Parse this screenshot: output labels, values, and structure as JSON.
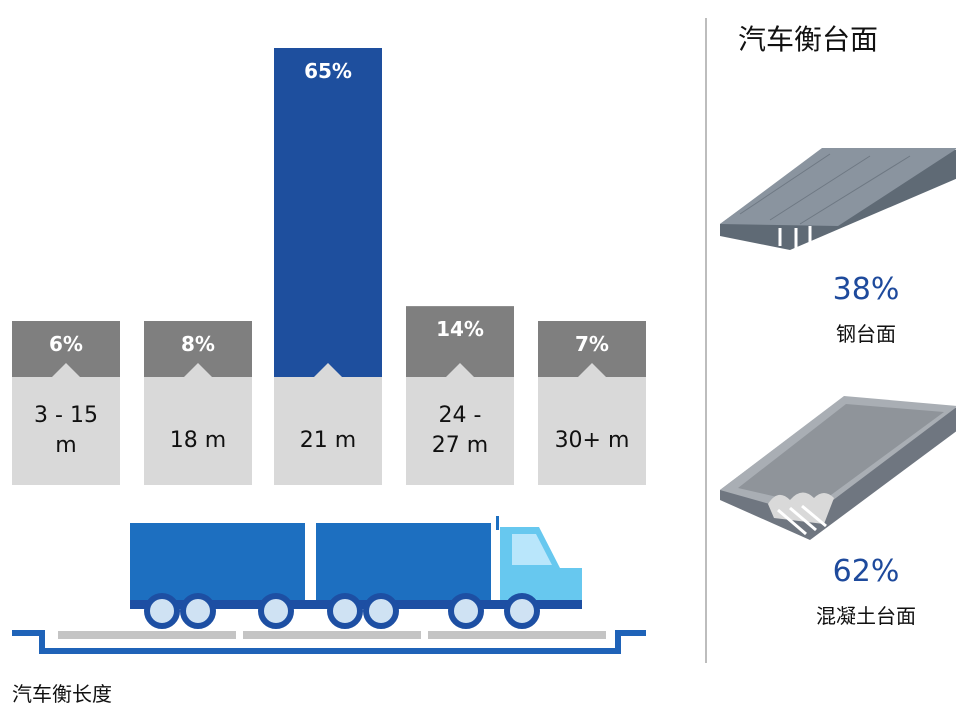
{
  "chart_data": {
    "type": "bar",
    "title": "",
    "xlabel": "汽车衡长度",
    "ylabel": "",
    "categories": [
      "3 - 15 m",
      "18 m",
      "21 m",
      "24 - 27 m",
      "30+ m"
    ],
    "category_lines": [
      [
        "3 - 15",
        "m"
      ],
      [
        "18 m"
      ],
      [
        "21 m"
      ],
      [
        "24 -",
        "27 m"
      ],
      [
        "30+ m"
      ]
    ],
    "values": [
      6,
      8,
      65,
      14,
      7
    ],
    "value_labels": [
      "6%",
      "8%",
      "65%",
      "14%",
      "7%"
    ],
    "highlight_index": 2,
    "ylim": [
      0,
      65
    ]
  },
  "deck_types": {
    "title": "汽车衡台面",
    "items": [
      {
        "percent": "38%",
        "label": "钢台面",
        "value": 38
      },
      {
        "percent": "62%",
        "label": "混凝土台面",
        "value": 62
      }
    ]
  },
  "colors": {
    "bar_default": "#7f7f7f",
    "bar_highlight": "#1e4f9e",
    "label_box": "#d9d9d9",
    "percent_text": "#1e4a9c",
    "truck_dark": "#1d6fc0",
    "truck_light": "#67c8ef",
    "wheel": "#1d4fa3",
    "base": "#1f63b8"
  }
}
